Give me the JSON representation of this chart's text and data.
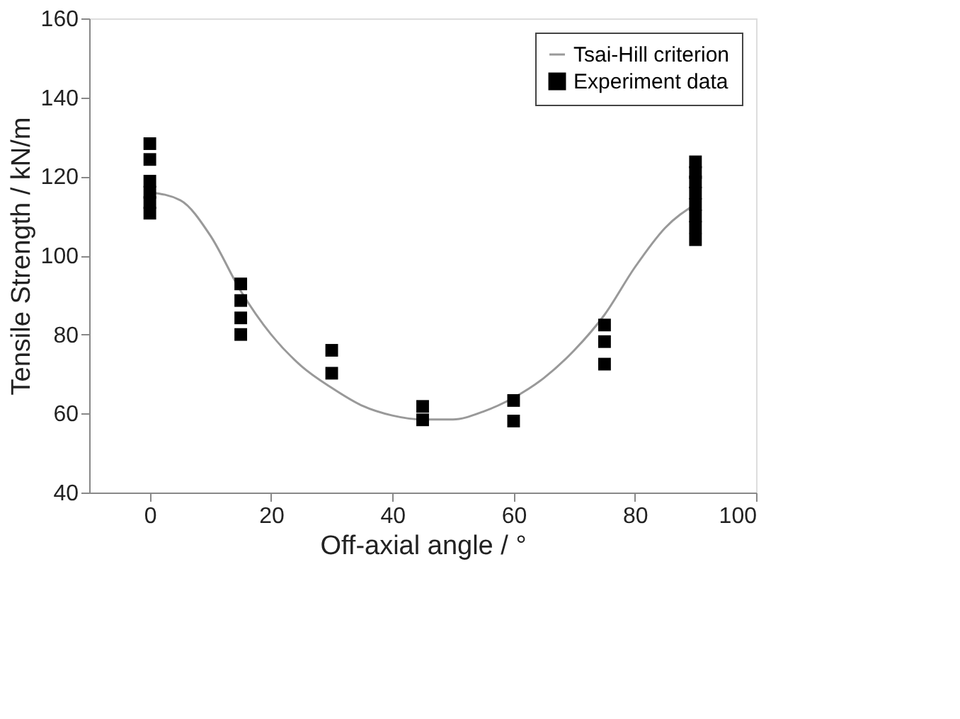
{
  "chart_data": {
    "type": "scatter",
    "xlabel": "Off-axial angle / °",
    "ylabel": "Tensile Strength / kN/m",
    "xlim": [
      -10,
      100
    ],
    "xticks": [
      0,
      20,
      40,
      60,
      80,
      100
    ],
    "ylim": [
      40,
      160
    ],
    "yticks": [
      40,
      60,
      80,
      100,
      120,
      140,
      160
    ],
    "grid": false,
    "legend": "top right",
    "series": [
      {
        "name": "Tsai-Hill criterion",
        "type": "line",
        "color": "#999999",
        "line_style": "solid",
        "marker": "none",
        "x": [
          0,
          5,
          10,
          15,
          20,
          25,
          30,
          35,
          40,
          45,
          50,
          55,
          60,
          65,
          70,
          75,
          80,
          85,
          90
        ],
        "values": [
          116,
          114,
          105,
          91,
          80,
          72,
          66.5,
          62,
          59.5,
          58.5,
          58.5,
          60.5,
          64,
          69,
          76,
          85,
          97,
          107,
          113
        ]
      },
      {
        "name": "Experiment data",
        "color": "#000000",
        "marker": "square",
        "x": [
          0,
          0,
          0,
          0,
          0,
          0,
          15,
          15,
          15,
          15,
          30,
          30,
          45,
          45,
          60,
          60,
          75,
          75,
          75,
          90,
          90,
          90,
          90,
          90,
          90,
          90,
          90
        ],
        "values": [
          128.3,
          124.3,
          118.8,
          116,
          113.4,
          110.7,
          92.8,
          88.6,
          84.2,
          80,
          76,
          70.2,
          61.8,
          58.4,
          63.3,
          58.1,
          82.4,
          78.2,
          72.5,
          123.7,
          121,
          118.6,
          115.8,
          112.9,
          110,
          107.1,
          104
        ]
      }
    ]
  }
}
